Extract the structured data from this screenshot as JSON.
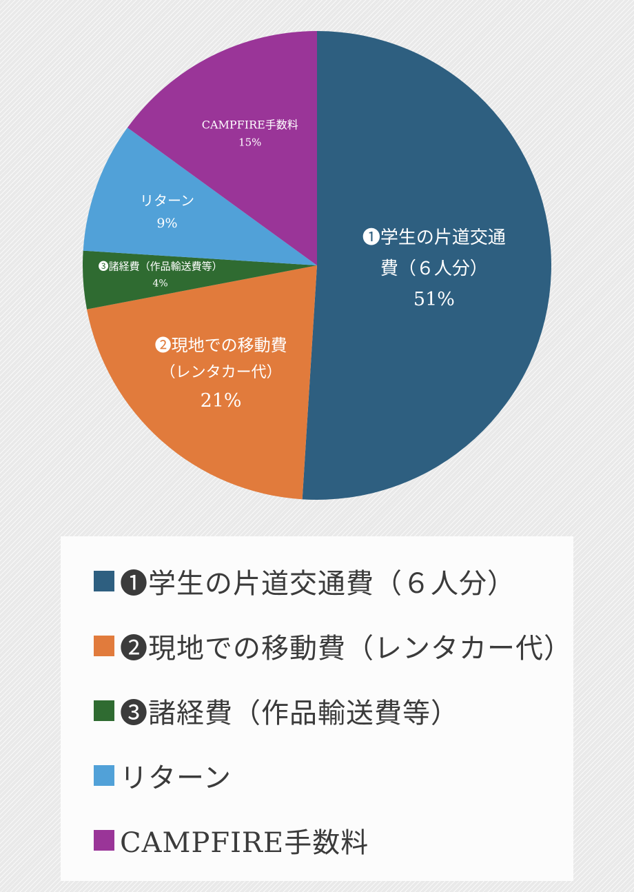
{
  "page": {
    "background_color": "#ededed",
    "panel_color": "#fcfcfc"
  },
  "chart_data": {
    "type": "pie",
    "title": "",
    "start_angle_deg": 0,
    "direction": "clockwise",
    "legend_position": "bottom",
    "slices": [
      {
        "name": "学生の片道交通費（６人分）",
        "value": 51,
        "percent_label": "51%",
        "color": "#2e5f80",
        "label_r": 0.5,
        "label_lines": [
          {
            "t": "❶学生の片道交通",
            "fs": 26
          },
          {
            "t": "費（６人分）",
            "fs": 26
          },
          {
            "t": "51%",
            "fs": 27
          }
        ]
      },
      {
        "name": "現地での移動費（レンタカー代）",
        "value": 21,
        "percent_label": "21%",
        "color": "#e17b3c",
        "label_r": 0.62,
        "label_lines": [
          {
            "t": "❷現地での移動費",
            "fs": 24
          },
          {
            "t": "（レンタカー代）",
            "fs": 22
          },
          {
            "t": "21%",
            "fs": 27
          }
        ]
      },
      {
        "name": "諸経費（作品輸送費等）",
        "value": 4,
        "percent_label": "4%",
        "color": "#2f6b31",
        "label_r": 0.67,
        "label_lines": [
          {
            "t": "❸諸経費（作品輸送費等）",
            "fs": 15
          },
          {
            "t": "4%",
            "fs": 14
          }
        ]
      },
      {
        "name": "リターン",
        "value": 9,
        "percent_label": "9%",
        "color": "#51a1d8",
        "label_r": 0.68,
        "label_lines": [
          {
            "t": "リターン",
            "fs": 20
          },
          {
            "t": "9%",
            "fs": 19
          }
        ]
      },
      {
        "name": "CAMPFIRE手数料",
        "value": 15,
        "percent_label": "15%",
        "color": "#9a3598",
        "label_r": 0.63,
        "label_lines": [
          {
            "t": "CAMPFIRE手数料",
            "fs": 16
          },
          {
            "t": "15%",
            "fs": 15
          }
        ]
      }
    ]
  },
  "legend": {
    "items": [
      {
        "label": "❶学生の片道交通費（６人分）",
        "color": "#2e5f80"
      },
      {
        "label": "❷現地での移動費（レンタカー代）",
        "color": "#e17b3c"
      },
      {
        "label": "❸諸経費（作品輸送費等）",
        "color": "#2f6b31"
      },
      {
        "label": "リターン",
        "color": "#51a1d8"
      },
      {
        "label": "CAMPFIRE手数料",
        "color": "#9a3598"
      }
    ]
  }
}
